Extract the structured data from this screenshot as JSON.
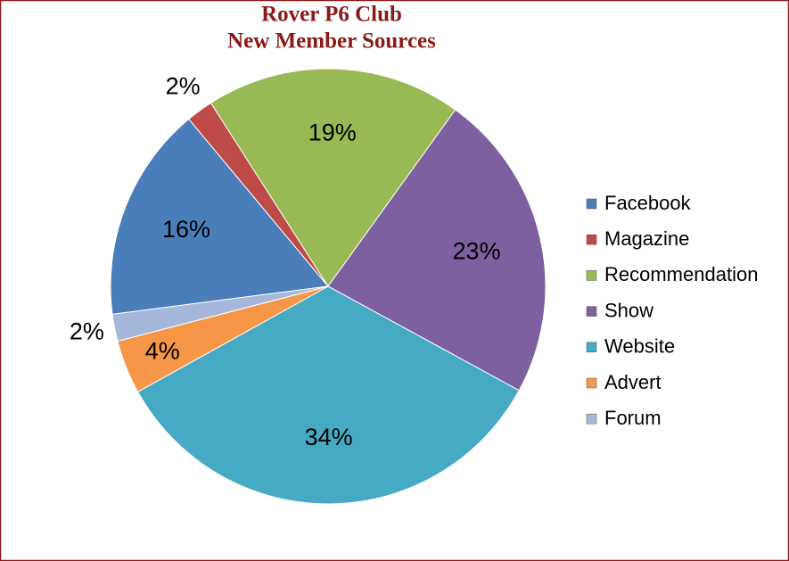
{
  "chart_data": {
    "type": "pie",
    "title": "Rover P6 Club",
    "subtitle": "New Member Sources",
    "categories": [
      "Facebook",
      "Magazine",
      "Recommendation",
      "Show",
      "Website",
      "Advert",
      "Forum"
    ],
    "values": [
      16,
      2,
      19,
      23,
      34,
      4,
      2
    ],
    "value_labels": [
      "16%",
      "2%",
      "19%",
      "23%",
      "34%",
      "4%",
      "2%"
    ],
    "colors": [
      "#4a7ebb",
      "#be4b48",
      "#98b954",
      "#7d60a0",
      "#46aac5",
      "#f79646",
      "#a5b7db"
    ],
    "legend": "right"
  }
}
